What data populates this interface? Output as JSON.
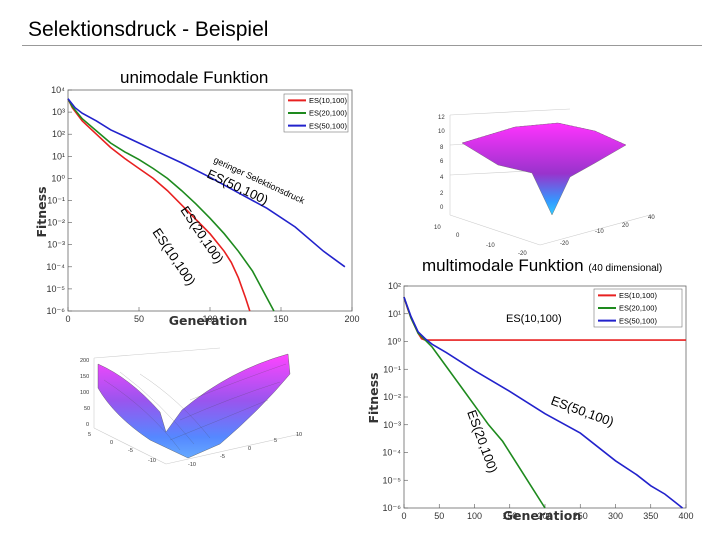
{
  "slide": {
    "title": "Selektionsdruck - Beispiel",
    "unimodal_label": "unimodale Funktion",
    "multimodal_label": "multimodale Funktion",
    "multimodal_note": "(40 dimensional)"
  },
  "colors": {
    "red": "#e82020",
    "green": "#1e8a1e",
    "blue": "#2222cc"
  },
  "chart_data": [
    {
      "type": "line",
      "xlabel": "Generation",
      "ylabel": "Fitness",
      "xlim": [
        0,
        200
      ],
      "ylim_log10": [
        -6,
        4
      ],
      "x_ticks": [
        "0",
        "50",
        "100",
        "150",
        "200"
      ],
      "y_ticks": [
        "10⁴",
        "10³",
        "10²",
        "10¹",
        "10⁰",
        "10⁻¹",
        "10⁻²",
        "10⁻³",
        "10⁻⁴",
        "10⁻⁵",
        "10⁻⁶"
      ],
      "log_y": true,
      "legend_position": "top-right",
      "series": [
        {
          "name": "ES(10,100)",
          "color": "red",
          "x": [
            0,
            3,
            10,
            20,
            30,
            40,
            50,
            60,
            70,
            80,
            90,
            100,
            110,
            115,
            120,
            125,
            128
          ],
          "y_log10": [
            3.6,
            3.2,
            2.6,
            2.0,
            1.4,
            0.9,
            0.45,
            0.0,
            -0.55,
            -1.2,
            -1.85,
            -2.5,
            -3.3,
            -3.8,
            -4.5,
            -5.4,
            -6.0
          ]
        },
        {
          "name": "ES(20,100)",
          "color": "green",
          "x": [
            0,
            3,
            10,
            20,
            30,
            40,
            50,
            60,
            70,
            80,
            90,
            100,
            110,
            120,
            130,
            140,
            145
          ],
          "y_log10": [
            3.6,
            3.25,
            2.7,
            2.15,
            1.6,
            1.2,
            0.85,
            0.45,
            0.0,
            -0.55,
            -1.15,
            -1.8,
            -2.5,
            -3.3,
            -4.2,
            -5.4,
            -6.0
          ]
        },
        {
          "name": "ES(50,100)",
          "color": "blue",
          "x": [
            0,
            5,
            10,
            20,
            30,
            40,
            60,
            80,
            100,
            120,
            140,
            160,
            180,
            195
          ],
          "y_log10": [
            3.6,
            3.2,
            2.95,
            2.6,
            2.2,
            1.9,
            1.3,
            0.7,
            0.05,
            -0.65,
            -1.35,
            -2.2,
            -3.3,
            -4.0
          ]
        }
      ],
      "annotations": [
        "geringer Selektionsdruck",
        "ES(50,100)",
        "ES(20,100)",
        "ES(10,100)"
      ]
    },
    {
      "type": "line",
      "xlabel": "Generation",
      "ylabel": "Fitness",
      "xlim": [
        0,
        400
      ],
      "ylim_log10": [
        -6,
        2
      ],
      "x_ticks": [
        "0",
        "50",
        "100",
        "150",
        "200",
        "250",
        "300",
        "350",
        "400"
      ],
      "y_ticks": [
        "10²",
        "10¹",
        "10⁰",
        "10⁻¹",
        "10⁻²",
        "10⁻³",
        "10⁻⁴",
        "10⁻⁵",
        "10⁻⁶"
      ],
      "log_y": true,
      "legend_position": "top-right",
      "series": [
        {
          "name": "ES(10,100)",
          "color": "red",
          "x": [
            0,
            5,
            10,
            20,
            25,
            30,
            400
          ],
          "y_log10": [
            1.6,
            1.2,
            0.85,
            0.3,
            0.1,
            0.05,
            0.05
          ]
        },
        {
          "name": "ES(20,100)",
          "color": "green",
          "x": [
            0,
            10,
            20,
            30,
            40,
            60,
            80,
            100,
            120,
            140,
            160,
            180,
            200
          ],
          "y_log10": [
            1.6,
            0.85,
            0.3,
            0.05,
            -0.2,
            -0.9,
            -1.6,
            -2.3,
            -3.0,
            -3.6,
            -4.4,
            -5.2,
            -6.0
          ]
        },
        {
          "name": "ES(50,100)",
          "color": "blue",
          "x": [
            0,
            10,
            20,
            30,
            40,
            60,
            100,
            150,
            200,
            250,
            300,
            330,
            350,
            370,
            385,
            395
          ],
          "y_log10": [
            1.6,
            0.9,
            0.35,
            0.1,
            -0.1,
            -0.4,
            -1.05,
            -1.8,
            -2.6,
            -3.3,
            -4.3,
            -4.8,
            -5.2,
            -5.5,
            -5.8,
            -6.0
          ]
        }
      ],
      "annotations": [
        "ES(10,100)",
        "ES(50,100)",
        "ES(20,100)"
      ]
    }
  ]
}
